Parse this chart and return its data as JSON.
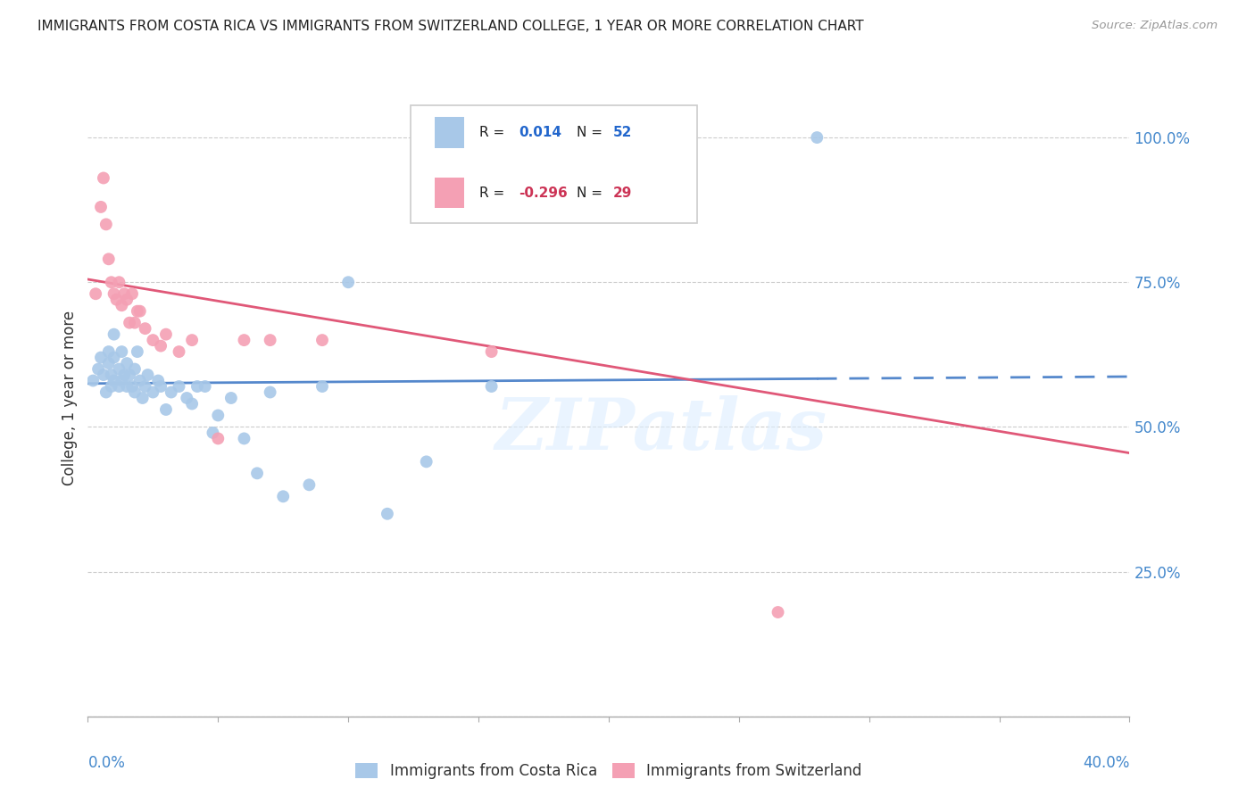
{
  "title": "IMMIGRANTS FROM COSTA RICA VS IMMIGRANTS FROM SWITZERLAND COLLEGE, 1 YEAR OR MORE CORRELATION CHART",
  "source": "Source: ZipAtlas.com",
  "ylabel": "College, 1 year or more",
  "xlim": [
    0.0,
    0.4
  ],
  "ylim": [
    0.0,
    1.1
  ],
  "y_ticks": [
    0.0,
    0.25,
    0.5,
    0.75,
    1.0
  ],
  "y_tick_labels": [
    "",
    "25.0%",
    "50.0%",
    "75.0%",
    "100.0%"
  ],
  "r_costa_rica": 0.014,
  "n_costa_rica": 52,
  "r_switzerland": -0.296,
  "n_switzerland": 29,
  "color_costa_rica": "#a8c8e8",
  "color_switzerland": "#f4a0b4",
  "trend_color_costa_rica": "#5588cc",
  "trend_color_switzerland": "#e05878",
  "watermark": "ZIPatlas",
  "legend_labels": [
    "Immigrants from Costa Rica",
    "Immigrants from Switzerland"
  ],
  "trend_cr_y0": 0.575,
  "trend_cr_y1": 0.587,
  "trend_sw_y0": 0.755,
  "trend_sw_y1": 0.455,
  "trend_solid_end": 0.28,
  "costa_rica_x": [
    0.002,
    0.004,
    0.005,
    0.006,
    0.007,
    0.008,
    0.008,
    0.009,
    0.009,
    0.01,
    0.01,
    0.01,
    0.012,
    0.012,
    0.013,
    0.013,
    0.014,
    0.015,
    0.015,
    0.016,
    0.017,
    0.018,
    0.018,
    0.019,
    0.02,
    0.021,
    0.022,
    0.023,
    0.025,
    0.027,
    0.028,
    0.03,
    0.032,
    0.035,
    0.038,
    0.04,
    0.042,
    0.045,
    0.048,
    0.05,
    0.055,
    0.06,
    0.065,
    0.07,
    0.075,
    0.085,
    0.09,
    0.1,
    0.115,
    0.13,
    0.155,
    0.28
  ],
  "costa_rica_y": [
    0.58,
    0.6,
    0.62,
    0.59,
    0.56,
    0.61,
    0.63,
    0.57,
    0.59,
    0.58,
    0.62,
    0.66,
    0.57,
    0.6,
    0.58,
    0.63,
    0.59,
    0.57,
    0.61,
    0.59,
    0.57,
    0.56,
    0.6,
    0.63,
    0.58,
    0.55,
    0.57,
    0.59,
    0.56,
    0.58,
    0.57,
    0.53,
    0.56,
    0.57,
    0.55,
    0.54,
    0.57,
    0.57,
    0.49,
    0.52,
    0.55,
    0.48,
    0.42,
    0.56,
    0.38,
    0.4,
    0.57,
    0.75,
    0.35,
    0.44,
    0.57,
    1.0
  ],
  "switzerland_x": [
    0.003,
    0.005,
    0.006,
    0.007,
    0.008,
    0.009,
    0.01,
    0.011,
    0.012,
    0.013,
    0.014,
    0.015,
    0.016,
    0.017,
    0.018,
    0.019,
    0.02,
    0.022,
    0.025,
    0.028,
    0.03,
    0.035,
    0.04,
    0.05,
    0.06,
    0.07,
    0.09,
    0.155,
    0.265
  ],
  "switzerland_y": [
    0.73,
    0.88,
    0.93,
    0.85,
    0.79,
    0.75,
    0.73,
    0.72,
    0.75,
    0.71,
    0.73,
    0.72,
    0.68,
    0.73,
    0.68,
    0.7,
    0.7,
    0.67,
    0.65,
    0.64,
    0.66,
    0.63,
    0.65,
    0.48,
    0.65,
    0.65,
    0.65,
    0.63,
    0.18
  ]
}
